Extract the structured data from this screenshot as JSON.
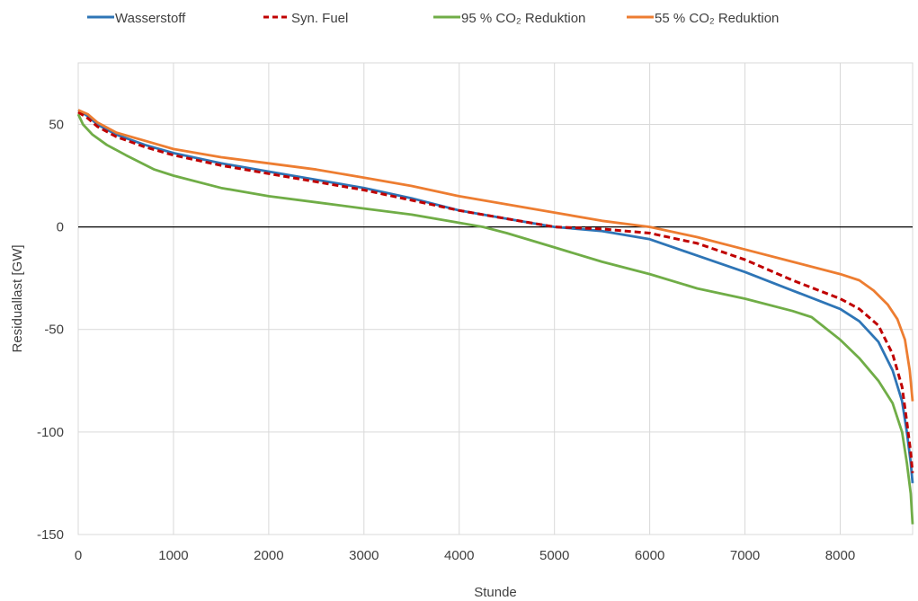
{
  "chart_data": {
    "type": "line",
    "title": "",
    "xlabel": "Stunde",
    "ylabel": "Residuallast [GW]",
    "xlim": [
      0,
      8760
    ],
    "ylim": [
      -150,
      80
    ],
    "xticks": [
      0,
      1000,
      2000,
      3000,
      4000,
      5000,
      6000,
      7000,
      8000
    ],
    "yticks": [
      50,
      0,
      -50,
      -100,
      -150
    ],
    "grid": "vertical and horizontal",
    "legend_position": "top",
    "series": [
      {
        "name": "Wasserstoff",
        "color": "#2e75b6",
        "dash": "solid",
        "x": [
          0,
          100,
          200,
          400,
          700,
          1000,
          1500,
          2000,
          2500,
          3000,
          3500,
          4000,
          4500,
          5000,
          5500,
          6000,
          6500,
          7000,
          7500,
          8000,
          8200,
          8400,
          8550,
          8650,
          8700,
          8740,
          8760
        ],
        "y": [
          57,
          54,
          50,
          45,
          40,
          36,
          31,
          27,
          23,
          19,
          14,
          8,
          4,
          0,
          -2,
          -6,
          -14,
          -22,
          -31,
          -40,
          -46,
          -56,
          -70,
          -85,
          -100,
          -115,
          -125
        ]
      },
      {
        "name": "Syn. Fuel",
        "color": "#c00000",
        "dash": "dashed",
        "x": [
          0,
          100,
          200,
          400,
          700,
          1000,
          1500,
          2000,
          2500,
          3000,
          3500,
          4000,
          4500,
          5000,
          5500,
          6000,
          6500,
          7000,
          7500,
          8000,
          8200,
          8400,
          8550,
          8650,
          8700,
          8740,
          8760
        ],
        "y": [
          56,
          53,
          49,
          44,
          39,
          35,
          30,
          26,
          22,
          18,
          13,
          8,
          4,
          0,
          -1,
          -3,
          -8,
          -16,
          -26,
          -35,
          -40,
          -48,
          -62,
          -78,
          -95,
          -110,
          -120
        ]
      },
      {
        "name": "95 % CO₂ Reduktion",
        "color": "#70ad47",
        "dash": "solid",
        "x": [
          0,
          50,
          150,
          300,
          500,
          800,
          1000,
          1500,
          2000,
          2500,
          3000,
          3500,
          4000,
          4250,
          4500,
          5000,
          5500,
          6000,
          6500,
          7000,
          7500,
          7700,
          8000,
          8200,
          8400,
          8550,
          8650,
          8700,
          8740,
          8760
        ],
        "y": [
          55,
          50,
          45,
          40,
          35,
          28,
          25,
          19,
          15,
          12,
          9,
          6,
          2,
          0,
          -3,
          -10,
          -17,
          -23,
          -30,
          -35,
          -41,
          -44,
          -55,
          -64,
          -75,
          -86,
          -100,
          -115,
          -130,
          -145
        ]
      },
      {
        "name": "55 % CO₂ Reduktion",
        "color": "#ed7d31",
        "dash": "solid",
        "x": [
          0,
          100,
          200,
          400,
          700,
          1000,
          1500,
          2000,
          2500,
          3000,
          3500,
          4000,
          4500,
          5000,
          5500,
          6000,
          6500,
          7000,
          7500,
          8000,
          8200,
          8350,
          8500,
          8600,
          8680,
          8730,
          8760
        ],
        "y": [
          57,
          55,
          51,
          46,
          42,
          38,
          34,
          31,
          28,
          24,
          20,
          15,
          11,
          7,
          3,
          0,
          -5,
          -11,
          -17,
          -23,
          -26,
          -31,
          -38,
          -45,
          -55,
          -70,
          -85
        ]
      }
    ]
  }
}
